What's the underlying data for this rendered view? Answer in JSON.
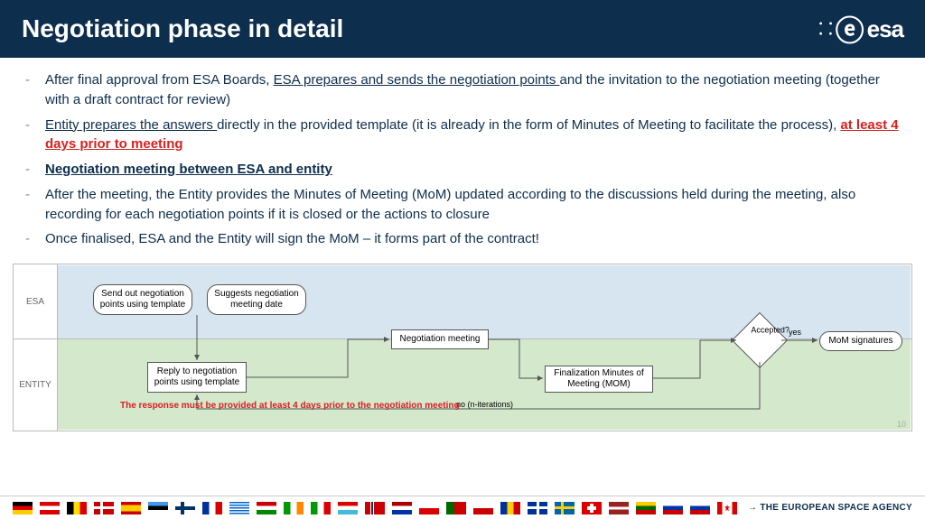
{
  "header": {
    "title": "Negotiation phase in detail",
    "logo_text": "esa"
  },
  "bullets": [
    {
      "pre": "After final approval from ESA Boards, ",
      "u1": "ESA prepares and sends the negotiation points ",
      "post": "and the invitation to the negotiation meeting (together with a draft contract for review)"
    },
    {
      "u1": "Entity prepares the answers ",
      "post": "directly in the provided template (it is already in the form of Minutes of Meeting to facilitate the process), ",
      "red": "at least 4 days prior to meeting"
    },
    {
      "bold": "Negotiation meeting between ESA and entity"
    },
    {
      "plain": "After the meeting, the Entity provides the Minutes of Meeting (MoM) updated according to the discussions held during the meeting, also recording for each negotiation points if it is closed or the actions to closure"
    },
    {
      "plain": "Once finalised, ESA and the Entity will sign the MoM – it forms part of the contract!"
    }
  ],
  "diagram": {
    "lanes": {
      "top": "ESA",
      "bottom": "ENTITY"
    },
    "nodes": {
      "n1": "Send out negotiation points using template",
      "n2": "Suggests negotiation meeting date",
      "n3": "Reply to negotiation points using template",
      "n4": "Negotiation meeting",
      "n5": "Finalization Minutes of Meeting (MOM)",
      "n6": "Accepted?",
      "n7": "MoM signatures"
    },
    "edge_yes": "yes",
    "edge_no": "no (n-iterations)",
    "note": "The response must be provided at least 4 days prior to the negotiation meeting"
  },
  "page_number": "10",
  "footer_tagline": "→ THE EUROPEAN SPACE AGENCY",
  "flags": [
    "de",
    "at",
    "be",
    "dk",
    "es",
    "ee",
    "fi",
    "fr",
    "gr",
    "hu",
    "ie",
    "it",
    "lu",
    "no",
    "nl",
    "pl",
    "pt",
    "cz",
    "ro",
    "uk",
    "se",
    "ch",
    "lv",
    "lt",
    "sk",
    "si",
    "ca"
  ]
}
